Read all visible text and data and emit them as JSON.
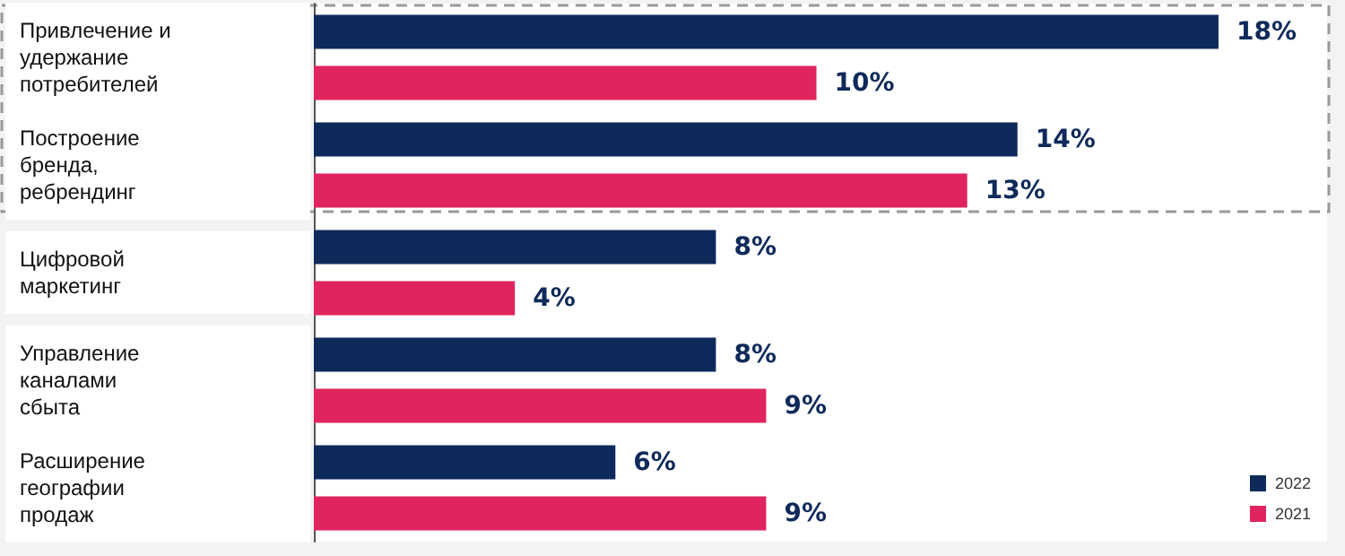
{
  "chart_data": {
    "type": "bar",
    "orientation": "horizontal",
    "categories": [
      "Привлечение и удержание потребителей",
      "Построение бренда, ребрендинг",
      "Цифровой маркетинг",
      "Управление каналами сбыта",
      "Расширение географии продаж"
    ],
    "series": [
      {
        "name": "2022",
        "color": "#0e2a5a",
        "values": [
          18,
          14,
          8,
          8,
          6
        ],
        "value_labels": [
          "18%",
          "14%",
          "8%",
          "8%",
          "6%"
        ]
      },
      {
        "name": "2021",
        "color": "#e0245e",
        "values": [
          10,
          13,
          4,
          9,
          9
        ],
        "value_labels": [
          "10%",
          "13%",
          "4%",
          "9%",
          "9%"
        ]
      }
    ],
    "legend": "bottom right",
    "grid": false
  }
}
